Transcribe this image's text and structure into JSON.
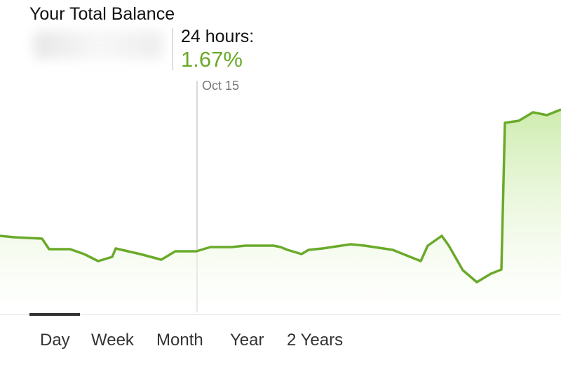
{
  "header": {
    "title": "Your Total Balance"
  },
  "change": {
    "label": "24 hours:",
    "value": "1.67%"
  },
  "chart": {
    "date_label": "Oct 15"
  },
  "tabs": {
    "items": [
      "Day",
      "Week",
      "Month",
      "Year",
      "2 Years"
    ]
  }
}
